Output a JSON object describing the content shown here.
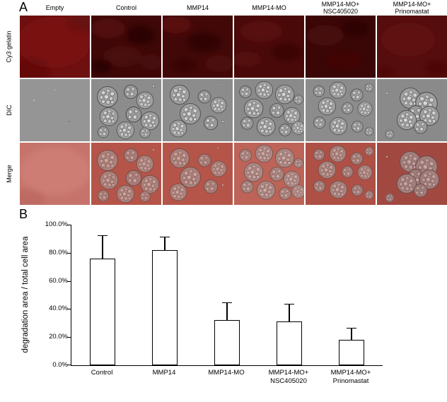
{
  "figure": {
    "panel_a_label": "A",
    "panel_b_label": "B"
  },
  "panel_a": {
    "column_headers": [
      "Empty",
      "Control",
      "MMP14",
      "MMP14-MO",
      "MMP14-MO+\nNSC405020",
      "MMP14-MO+\nPrinomastat"
    ],
    "row_labels": [
      "Cy3 gelatin",
      "DIC",
      "Merge"
    ]
  },
  "chart_data": {
    "type": "bar",
    "title": "",
    "categories": [
      "Control",
      "MMP14",
      "MMP14-MO",
      "MMP14-MO+\nNSC405020",
      "MMP14-MO+\nPrinomastat"
    ],
    "values": [
      76,
      82,
      32,
      31,
      18
    ],
    "errors_plus": [
      16,
      9,
      12,
      12,
      8
    ],
    "xlabel": "",
    "ylabel": "degradation area / total cell area",
    "ylim": [
      0,
      100
    ],
    "ytick_labels": [
      "0.0%",
      "20.0%",
      "40.0%",
      "60.0%",
      "80.0%",
      "100.0%"
    ],
    "bar_fill": "#ffffff",
    "bar_border": "#000000",
    "legend": "none",
    "grid": "off"
  }
}
